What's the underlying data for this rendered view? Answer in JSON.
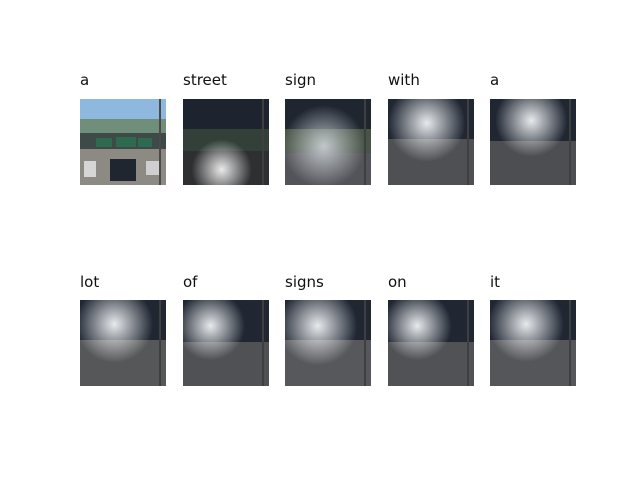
{
  "row1": {
    "labels": [
      "a",
      "street",
      "sign",
      "with",
      "a"
    ]
  },
  "row2": {
    "labels": [
      "lot",
      "of",
      "signs",
      "on",
      "it"
    ]
  },
  "colors": {
    "sky_blue": "#8fb8df",
    "dark_bg": "#1d2430",
    "attention_glow": "#f2f4f6",
    "sign_green": "#2d6a4f"
  }
}
